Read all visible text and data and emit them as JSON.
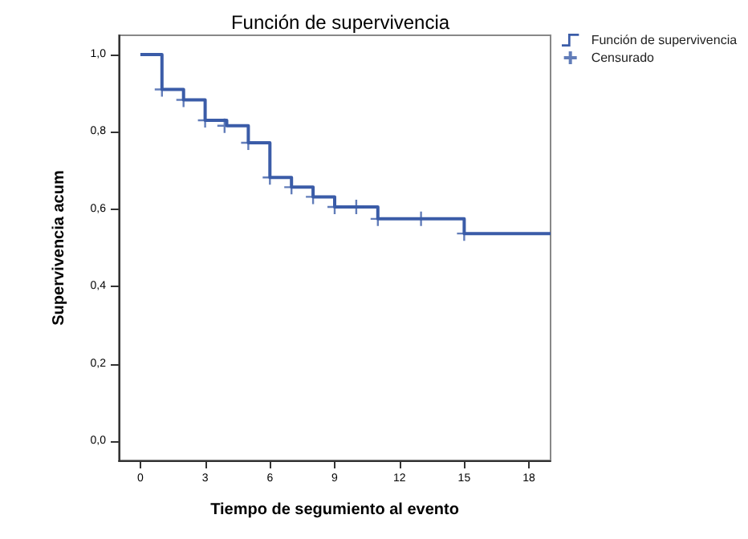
{
  "chart_data": {
    "type": "step",
    "title": "Función de supervivencia",
    "xlabel": "Tiempo de segumiento al evento",
    "ylabel": "Supervivencia acum",
    "series": [
      {
        "name": "Función de supervivencia",
        "color": "#3b5ca8",
        "marker": "none",
        "line_style": "solid",
        "x": [
          0,
          1,
          2,
          3,
          4,
          5,
          6,
          7,
          8,
          9,
          11,
          15,
          19
        ],
        "values": [
          1,
          0.91,
          0.883,
          0.83,
          0.816,
          0.772,
          0.682,
          0.657,
          0.632,
          0.606,
          0.575,
          0.537,
          0.537
        ]
      },
      {
        "name": "Censurado",
        "type": "scatter",
        "color": "#3b5ca8",
        "marker": "cross",
        "x": [
          1,
          2,
          3,
          3.9,
          5,
          6,
          7,
          8,
          9,
          10,
          11,
          13,
          15
        ],
        "values": [
          0.91,
          0.883,
          0.83,
          0.816,
          0.772,
          0.682,
          0.657,
          0.632,
          0.606,
          0.606,
          0.575,
          0.575,
          0.537
        ]
      }
    ],
    "xlim": [
      -1,
      19
    ],
    "xticks": [
      0,
      3,
      6,
      9,
      12,
      15,
      18
    ],
    "ylim": [
      -0.05,
      1.05
    ],
    "yticks": [
      {
        "value": 0,
        "label": "0,0"
      },
      {
        "value": 0.2,
        "label": "0,2"
      },
      {
        "value": 0.4,
        "label": "0,4"
      },
      {
        "value": 0.6,
        "label": "0,6"
      },
      {
        "value": 0.8,
        "label": "0,8"
      },
      {
        "value": 1,
        "label": "1,0"
      }
    ],
    "grid": false,
    "legend": "top right"
  }
}
